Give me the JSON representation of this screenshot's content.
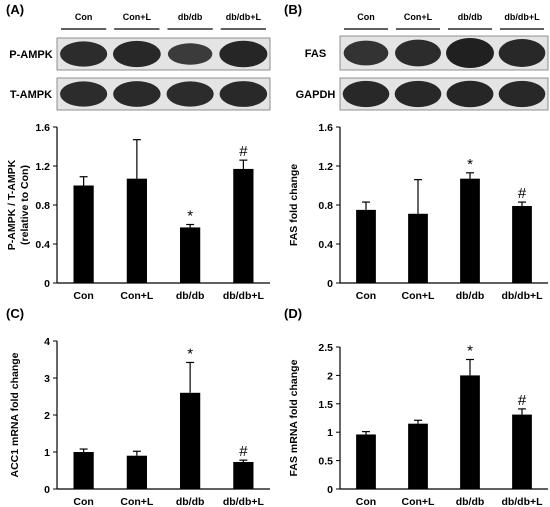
{
  "panels": [
    {
      "id": "A",
      "label": "(A)",
      "blot": {
        "lanes": [
          "Con",
          "Con+L",
          "db/db",
          "db/db+L"
        ],
        "rows": [
          {
            "label": "P-AMPK",
            "intensity": [
              0.85,
              0.9,
              0.65,
              0.92
            ]
          },
          {
            "label": "T-AMPK",
            "intensity": [
              0.85,
              0.87,
              0.85,
              0.88
            ]
          }
        ]
      }
    },
    {
      "id": "B",
      "label": "(B)",
      "blot": {
        "lanes": [
          "Con",
          "Con+L",
          "db/db",
          "db/db+L"
        ],
        "rows": [
          {
            "label": "FAS",
            "intensity": [
              0.75,
              0.85,
              1.0,
              0.9
            ]
          },
          {
            "label": "GAPDH",
            "intensity": [
              0.9,
              0.9,
              0.92,
              0.9
            ]
          }
        ]
      }
    },
    {
      "id": "C",
      "label": "(C)"
    },
    {
      "id": "D",
      "label": "(D)"
    }
  ],
  "chart_data": [
    {
      "panel": "A",
      "type": "bar",
      "categories": [
        "Con",
        "Con+L",
        "db/db",
        "db/db+L"
      ],
      "values": [
        1.0,
        1.07,
        0.57,
        1.17
      ],
      "errors": [
        0.09,
        0.4,
        0.03,
        0.09
      ],
      "annotations": [
        "",
        "",
        "*",
        "#"
      ],
      "ylabel": "P-AMPK / T-AMPK\n(relative to Con)",
      "ylim": [
        0,
        1.6
      ],
      "yticks": [
        "0",
        "0.4",
        "0.8",
        "1.2",
        "1.6"
      ]
    },
    {
      "panel": "B",
      "type": "bar",
      "categories": [
        "Con",
        "Con+L",
        "db/db",
        "db/db+L"
      ],
      "values": [
        0.75,
        0.71,
        1.07,
        0.79
      ],
      "errors": [
        0.08,
        0.35,
        0.06,
        0.04
      ],
      "annotations": [
        "",
        "",
        "*",
        "#"
      ],
      "ylabel": "FAS fold change",
      "ylim": [
        0,
        1.6
      ],
      "yticks": [
        "0",
        "0.4",
        "0.8",
        "1.2",
        "1.6"
      ]
    },
    {
      "panel": "C",
      "type": "bar",
      "categories": [
        "Con",
        "Con+L",
        "db/db",
        "db/db+L"
      ],
      "values": [
        1.0,
        0.9,
        2.6,
        0.73
      ],
      "errors": [
        0.08,
        0.12,
        0.82,
        0.05
      ],
      "annotations": [
        "",
        "",
        "*",
        "#"
      ],
      "ylabel": "ACC1 mRNA fold change",
      "ylim": [
        0,
        4
      ],
      "yticks": [
        "0",
        "1",
        "2",
        "3",
        "4"
      ]
    },
    {
      "panel": "D",
      "type": "bar",
      "categories": [
        "Con",
        "Con+L",
        "db/db",
        "db/db+L"
      ],
      "values": [
        0.96,
        1.15,
        2.0,
        1.31
      ],
      "errors": [
        0.05,
        0.06,
        0.28,
        0.1
      ],
      "annotations": [
        "",
        "",
        "*",
        "#"
      ],
      "ylabel": "FAS mRNA fold change",
      "ylim": [
        0,
        2.5
      ],
      "yticks": [
        "0",
        "0.5",
        "1",
        "1.5",
        "2",
        "2.5"
      ]
    }
  ]
}
